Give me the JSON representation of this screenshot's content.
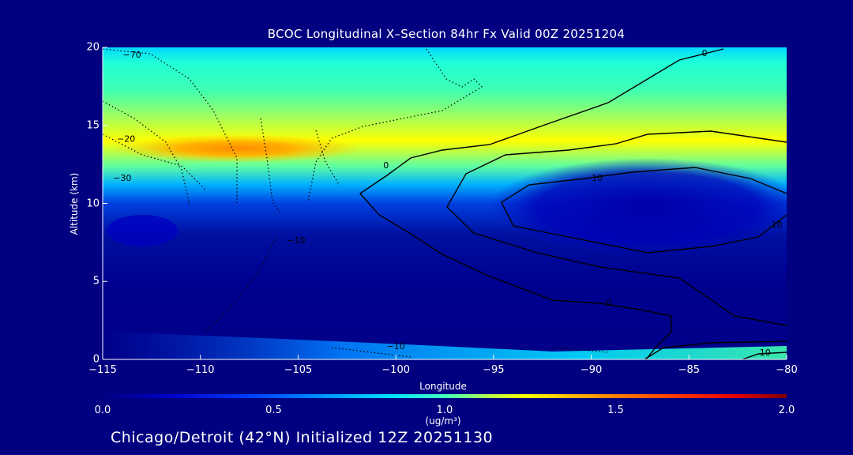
{
  "chart_data": {
    "type": "heatmap",
    "title": "BCOC Longitudinal X–Section 84hr  Fx Valid 00Z 20251204",
    "xlabel": "Longitude",
    "ylabel": "Altitude (km)",
    "xlim": [
      -115,
      -80
    ],
    "ylim": [
      0,
      20
    ],
    "x_ticks": [
      "−115",
      "−110",
      "−105",
      "−100",
      "−95",
      "−90",
      "−85",
      "−80"
    ],
    "x_tick_values": [
      -115,
      -110,
      -105,
      -100,
      -95,
      -90,
      -85,
      -80
    ],
    "y_ticks": [
      "0",
      "5",
      "10",
      "15",
      "20"
    ],
    "y_tick_values": [
      0,
      5,
      10,
      15,
      20
    ],
    "colorbar": {
      "min": 0.0,
      "max": 2.0,
      "ticks": [
        "0.0",
        "0.5",
        "1.0",
        "1.5",
        "2.0"
      ],
      "tick_values": [
        0.0,
        0.5,
        1.0,
        1.5,
        2.0
      ],
      "units_label": "(ug/m³)",
      "colors": [
        "#000080",
        "#0040ff",
        "#00e0ff",
        "#ffff00",
        "#ff8000",
        "#800000"
      ]
    },
    "contour_labels": [
      {
        "text": "−70",
        "lon": -113.5,
        "alt": 19.5
      },
      {
        "text": "−20",
        "lon": -113.8,
        "alt": 14.1
      },
      {
        "text": "−30",
        "lon": -114.0,
        "alt": 11.6
      },
      {
        "text": "0",
        "lon": -100.5,
        "alt": 12.4
      },
      {
        "text": "10",
        "lon": -89.7,
        "alt": 11.6
      },
      {
        "text": "0",
        "lon": -84.2,
        "alt": 19.6
      },
      {
        "text": "10",
        "lon": -80.5,
        "alt": 8.6
      },
      {
        "text": "0",
        "lon": -89.1,
        "alt": 3.6
      },
      {
        "text": "−10",
        "lon": -105.1,
        "alt": 7.6
      },
      {
        "text": "−10",
        "lon": -100.0,
        "alt": 0.8
      },
      {
        "text": "10",
        "lon": -81.1,
        "alt": 0.4
      }
    ],
    "concentration_features": [
      {
        "feature": "upper-level maximum",
        "lon_range": [
          -115,
          -102
        ],
        "alt": 13.5,
        "value": 1.4
      },
      {
        "feature": "upper layer",
        "lon_range": [
          -115,
          -80
        ],
        "alt": 15.0,
        "value": 1.0
      },
      {
        "feature": "surface maximum",
        "lon_range": [
          -87,
          -80
        ],
        "alt": 0.5,
        "value": 0.9
      }
    ]
  },
  "footer": "Chicago/Detroit (42°N) Initialized 12Z 20251130"
}
